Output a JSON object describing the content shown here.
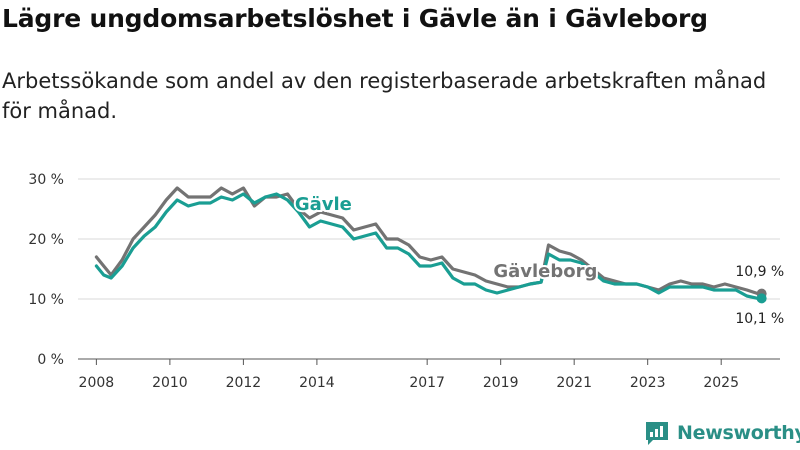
{
  "title": "Lägre ungdomsarbetslöshet i Gävle än i Gävleborg",
  "subtitle": "Arbetssökande som andel av den registerbaserade arbetskraften månad för månad.",
  "brand": {
    "name": "Newsworthy"
  },
  "colors": {
    "gavle": "#1a9e93",
    "gavleborg": "#737373",
    "grid": "#d9d9d9",
    "text": "#333333",
    "brand": "#2a8f86"
  },
  "chart_data": {
    "type": "line",
    "title": "Lägre ungdomsarbetslöshet i Gävle än i Gävleborg",
    "xlabel": "",
    "ylabel": "",
    "ylim": [
      0,
      30
    ],
    "xlim": [
      2007.5,
      2026.6
    ],
    "y_ticks": [
      {
        "value": 0,
        "label": "0 %"
      },
      {
        "value": 10,
        "label": "10 %"
      },
      {
        "value": 20,
        "label": "20 %"
      },
      {
        "value": 30,
        "label": "30 %"
      }
    ],
    "x_ticks": [
      {
        "value": 2008,
        "label": "2008"
      },
      {
        "value": 2010,
        "label": "2010"
      },
      {
        "value": 2012,
        "label": "2012"
      },
      {
        "value": 2014,
        "label": "2014"
      },
      {
        "value": 2017,
        "label": "2017"
      },
      {
        "value": 2019,
        "label": "2019"
      },
      {
        "value": 2021,
        "label": "2021"
      },
      {
        "value": 2023,
        "label": "2023"
      },
      {
        "value": 2025,
        "label": "2025"
      }
    ],
    "series": [
      {
        "name": "Gävleborg",
        "label": "Gävleborg",
        "end_label": "10,9 %",
        "x": [
          2008.0,
          2008.2,
          2008.4,
          2008.7,
          2009.0,
          2009.3,
          2009.6,
          2009.9,
          2010.2,
          2010.5,
          2010.8,
          2011.1,
          2011.4,
          2011.7,
          2012.0,
          2012.3,
          2012.6,
          2012.9,
          2013.2,
          2013.5,
          2013.8,
          2014.1,
          2014.4,
          2014.7,
          2015.0,
          2015.3,
          2015.6,
          2015.9,
          2016.2,
          2016.5,
          2016.8,
          2017.1,
          2017.4,
          2017.7,
          2018.0,
          2018.3,
          2018.6,
          2018.9,
          2019.2,
          2019.5,
          2019.8,
          2020.1,
          2020.3,
          2020.6,
          2020.9,
          2021.2,
          2021.5,
          2021.8,
          2022.1,
          2022.4,
          2022.7,
          2023.0,
          2023.3,
          2023.6,
          2023.9,
          2024.2,
          2024.5,
          2024.8,
          2025.1,
          2025.4,
          2025.7,
          2026.0,
          2026.1
        ],
        "y": [
          17.0,
          15.5,
          14.0,
          16.5,
          20.0,
          22.0,
          24.0,
          26.5,
          28.5,
          27.0,
          27.0,
          27.0,
          28.5,
          27.5,
          28.5,
          25.5,
          27.0,
          27.0,
          27.5,
          25.0,
          23.5,
          24.5,
          24.0,
          23.5,
          21.5,
          22.0,
          22.5,
          20.0,
          20.0,
          19.0,
          17.0,
          16.5,
          17.0,
          15.0,
          14.5,
          14.0,
          13.0,
          12.5,
          12.0,
          12.0,
          12.5,
          12.8,
          19.0,
          18.0,
          17.5,
          16.5,
          15.0,
          13.5,
          13.0,
          12.5,
          12.5,
          12.0,
          11.5,
          12.5,
          13.0,
          12.5,
          12.5,
          12.0,
          12.5,
          12.0,
          11.5,
          10.9,
          10.9
        ]
      },
      {
        "name": "Gävle",
        "label": "Gävle",
        "end_label": "10,1 %",
        "x": [
          2008.0,
          2008.2,
          2008.4,
          2008.7,
          2009.0,
          2009.3,
          2009.6,
          2009.9,
          2010.2,
          2010.5,
          2010.8,
          2011.1,
          2011.4,
          2011.7,
          2012.0,
          2012.3,
          2012.6,
          2012.9,
          2013.2,
          2013.5,
          2013.8,
          2014.1,
          2014.4,
          2014.7,
          2015.0,
          2015.3,
          2015.6,
          2015.9,
          2016.2,
          2016.5,
          2016.8,
          2017.1,
          2017.4,
          2017.7,
          2018.0,
          2018.3,
          2018.6,
          2018.9,
          2019.2,
          2019.5,
          2019.8,
          2020.1,
          2020.3,
          2020.6,
          2020.9,
          2021.2,
          2021.5,
          2021.8,
          2022.1,
          2022.4,
          2022.7,
          2023.0,
          2023.3,
          2023.6,
          2023.9,
          2024.2,
          2024.5,
          2024.8,
          2025.1,
          2025.4,
          2025.7,
          2026.0,
          2026.1
        ],
        "y": [
          15.5,
          14.0,
          13.5,
          15.5,
          18.5,
          20.5,
          22.0,
          24.5,
          26.5,
          25.5,
          26.0,
          26.0,
          27.0,
          26.5,
          27.5,
          26.0,
          27.0,
          27.5,
          26.5,
          24.5,
          22.0,
          23.0,
          22.5,
          22.0,
          20.0,
          20.5,
          21.0,
          18.5,
          18.5,
          17.5,
          15.5,
          15.5,
          16.0,
          13.5,
          12.5,
          12.5,
          11.5,
          11.0,
          11.5,
          12.0,
          12.5,
          12.8,
          17.5,
          16.5,
          16.5,
          16.0,
          14.5,
          13.0,
          12.5,
          12.5,
          12.5,
          12.0,
          11.0,
          12.0,
          12.0,
          12.0,
          12.0,
          11.5,
          11.5,
          11.5,
          10.5,
          10.1,
          10.1
        ]
      }
    ],
    "legend": "inline labels"
  }
}
